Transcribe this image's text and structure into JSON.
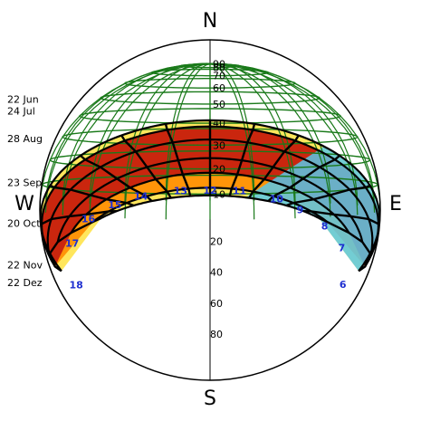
{
  "chart_data": {
    "type": "polar-sunpath",
    "title": "",
    "cardinals": [
      {
        "key": "N",
        "label": "N",
        "azimuth": 0
      },
      {
        "key": "E",
        "label": "E",
        "azimuth": 90
      },
      {
        "key": "S",
        "label": "S",
        "azimuth": 180
      },
      {
        "key": "W",
        "label": "W",
        "azimuth": 270
      }
    ],
    "altitude_ticks": [
      0,
      10,
      20,
      30,
      40,
      50,
      60,
      70,
      80,
      90
    ],
    "south_altitude_labels": [
      20,
      40,
      60,
      80
    ],
    "altitude_range": [
      0,
      90
    ],
    "date_lines": [
      {
        "label": "22 Jun",
        "alt_south": 34,
        "width_deg": 150,
        "label_altitude": 45
      },
      {
        "label": "24 Jul",
        "alt_south": 31,
        "width_deg": 144,
        "label_altitude": 39
      },
      {
        "label": "28 Aug",
        "alt_south": 25,
        "width_deg": 128,
        "label_altitude": 26
      },
      {
        "label": "23 Sep",
        "alt_south": 17,
        "width_deg": 112,
        "label_altitude": 8
      },
      {
        "label": "20 Oct",
        "alt_south": 11,
        "width_deg": 100,
        "label_altitude": -8
      },
      {
        "label": "22 Nov",
        "alt_south": 5,
        "width_deg": 85,
        "label_altitude": -25
      },
      {
        "label": "22 Dez",
        "alt_south": 2,
        "width_deg": 80,
        "label_altitude": -33
      }
    ],
    "hour_labels": [
      {
        "label": "6",
        "azimuth": 113,
        "elev": -32
      },
      {
        "label": "7",
        "azimuth": 126,
        "elev": -17
      },
      {
        "label": "8",
        "azimuth": 137,
        "elev": -9
      },
      {
        "label": "9",
        "azimuth": 148,
        "elev": -3
      },
      {
        "label": "10",
        "azimuth": 157,
        "elev": 1
      },
      {
        "label": "11",
        "azimuth": 170,
        "elev": 4
      },
      {
        "label": "12",
        "azimuth": 180,
        "elev": 4
      },
      {
        "label": "13",
        "azimuth": 190,
        "elev": 4
      },
      {
        "label": "14",
        "azimuth": 204,
        "elev": 2
      },
      {
        "label": "15",
        "azimuth": 214,
        "elev": -1
      },
      {
        "label": "16",
        "azimuth": 226,
        "elev": -6
      },
      {
        "label": "17",
        "azimuth": 237,
        "elev": -15
      },
      {
        "label": "18",
        "azimuth": 248,
        "elev": -32
      }
    ],
    "grid": true,
    "colors": {
      "grid": "#000000",
      "summer_path": "#1a7a1a",
      "hour_lines": "#000000",
      "hour_label": "#1f2fd0",
      "heat_high": "#c41a0f",
      "heat_mid": "#ff8c00",
      "heat_low": "#ffe34a",
      "heat_cool": "#5bc8e8"
    }
  }
}
